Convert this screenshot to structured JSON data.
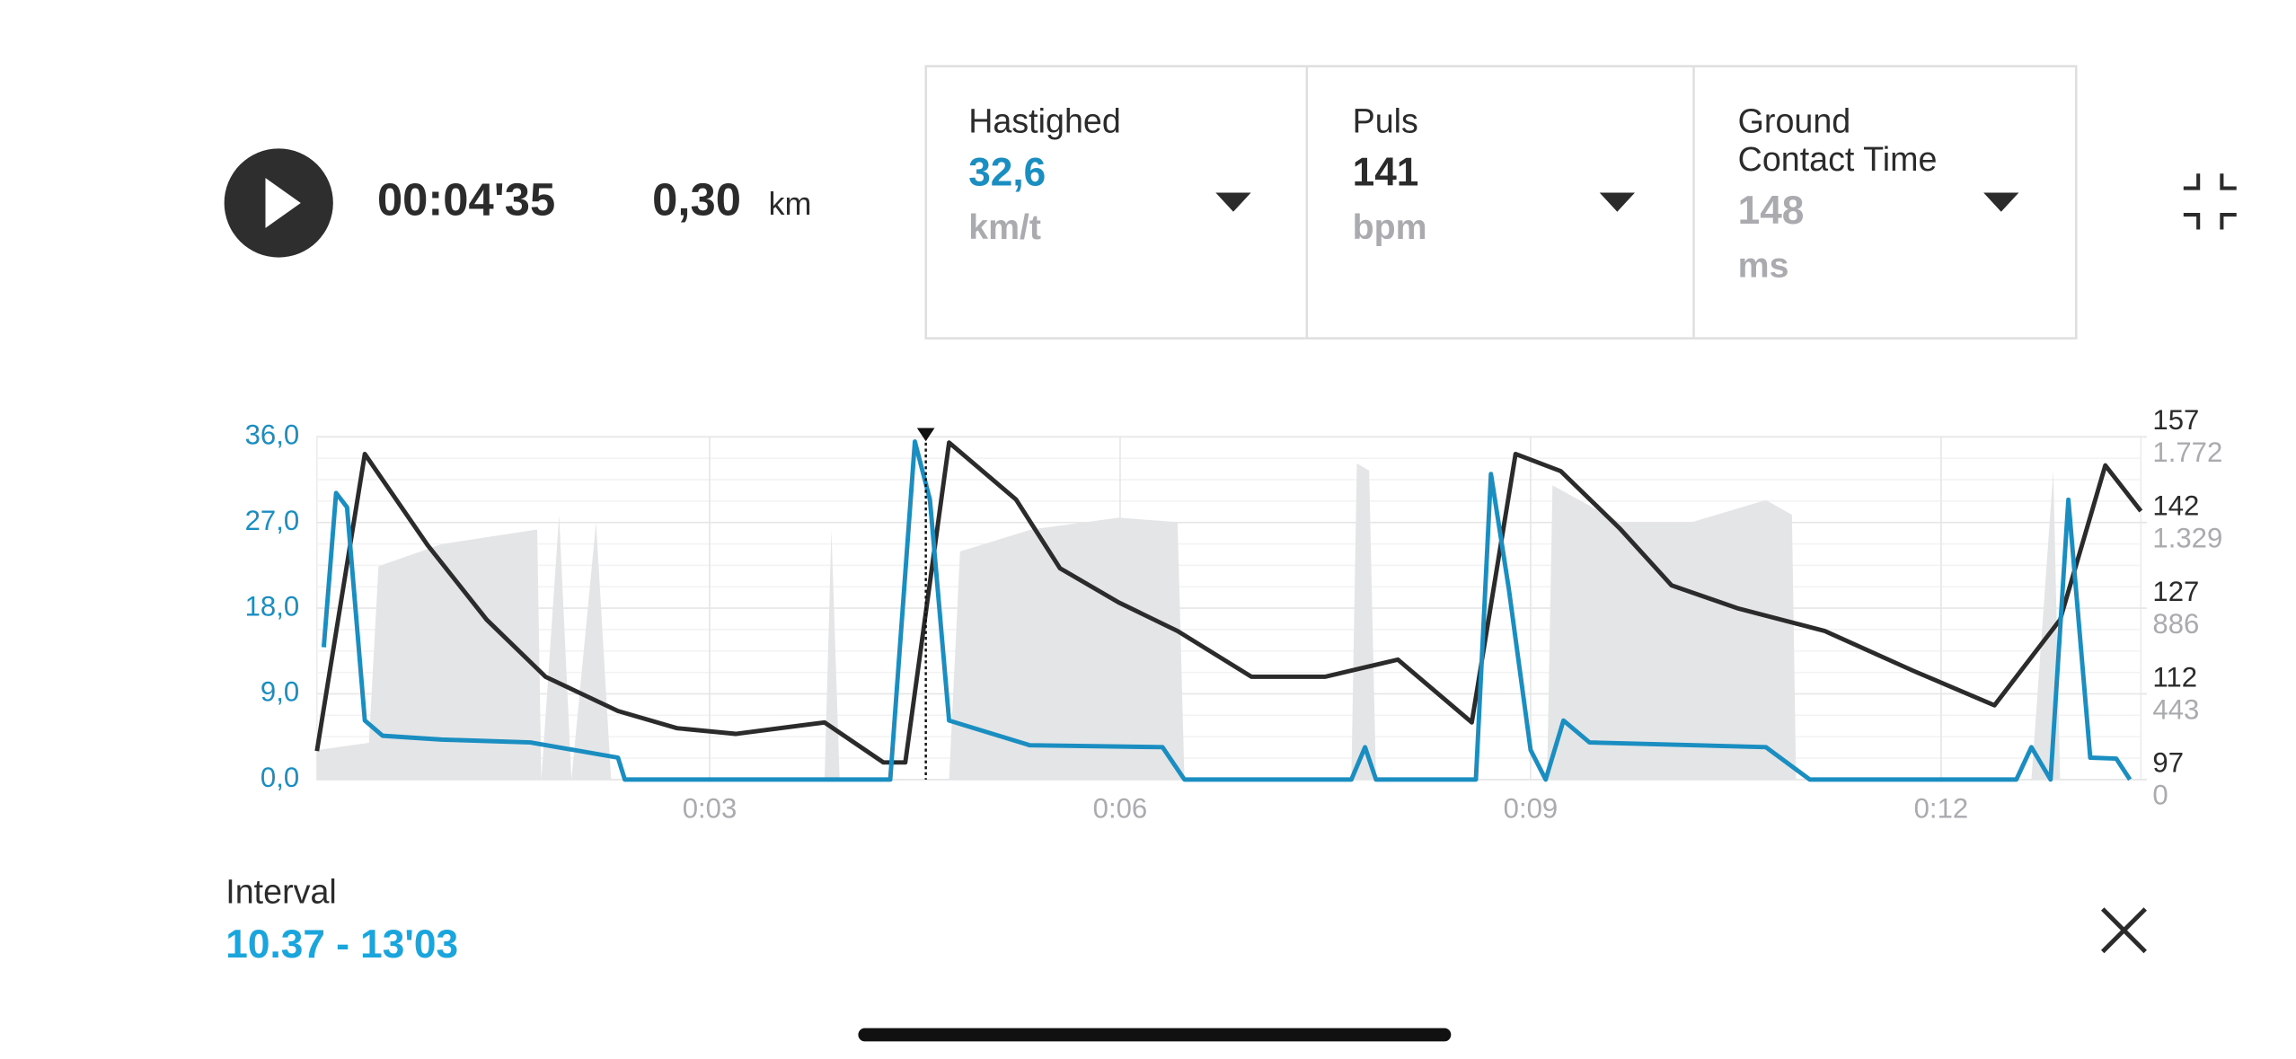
{
  "header": {
    "elapsed": "00:04'35",
    "distance": "0,30",
    "distance_unit": "km",
    "cards": [
      {
        "title": [
          "Hastighed"
        ],
        "value": "32,6",
        "unit": "km/t"
      },
      {
        "title": [
          "Puls"
        ],
        "value": "141",
        "unit": "bpm"
      },
      {
        "title": [
          "Ground",
          "Contact Time"
        ],
        "value": "148",
        "unit": "ms"
      }
    ]
  },
  "chart_data": {
    "type": "line",
    "grid": true,
    "cursor_x": 4.58,
    "xlim": [
      0.13,
      13.46
    ],
    "xticks": [
      {
        "value": 3,
        "label": "0:03"
      },
      {
        "value": 6,
        "label": "0:06"
      },
      {
        "value": 9,
        "label": "0:09"
      },
      {
        "value": 12,
        "label": "0:12"
      }
    ],
    "ylim": [
      0,
      36
    ],
    "yticks": [
      {
        "value": 0,
        "label": "0,0"
      },
      {
        "value": 9,
        "label": "9,0"
      },
      {
        "value": 18,
        "label": "18,0"
      },
      {
        "value": 27,
        "label": "27,0"
      },
      {
        "value": 36,
        "label": "36,0"
      }
    ],
    "y2lim": [
      97,
      157
    ],
    "y2ticks": [
      97,
      112,
      127,
      142,
      157
    ],
    "y3lim": [
      0,
      1772
    ],
    "y3ticks": [
      0,
      443,
      886,
      {
        "value": 1329,
        "label": "1.329"
      },
      {
        "value": 1772,
        "label": "1.772"
      }
    ],
    "series": [
      {
        "type": "area",
        "axis": "y3",
        "color": "#e4e5e7",
        "x": [
          0.13,
          0.51,
          0.58,
          1.04,
          1.74,
          1.77,
          1.9,
          1.99,
          2.17,
          2.28,
          3.84,
          3.89,
          3.95,
          4.75,
          4.83,
          5.35,
          5.99,
          6.42,
          6.47,
          7.69,
          7.73,
          7.82,
          7.87,
          9.12,
          9.16,
          9.65,
          10.18,
          10.72,
          10.91,
          10.94,
          12.66,
          12.82,
          12.87,
          13.46
        ],
        "values": [
          152,
          190,
          1103,
          1217,
          1293,
          0,
          1369,
          0,
          1331,
          0,
          0,
          1293,
          0,
          0,
          1179,
          1293,
          1354,
          1331,
          0,
          0,
          1635,
          1597,
          0,
          0,
          1521,
          1331,
          1331,
          1445,
          1369,
          0,
          0,
          1597,
          0,
          0
        ]
      },
      {
        "type": "line",
        "axis": "y2",
        "color": "#2b2b2b",
        "x": [
          0.13,
          0.48,
          0.94,
          1.37,
          1.8,
          2.33,
          2.76,
          3.19,
          3.84,
          4.27,
          4.43,
          4.75,
          5.24,
          5.56,
          5.99,
          6.42,
          6.96,
          7.5,
          8.03,
          8.57,
          8.89,
          9.22,
          9.65,
          10.03,
          10.51,
          11.15,
          11.8,
          12.39,
          12.87,
          13.2,
          13.46
        ],
        "values": [
          102,
          154,
          138,
          125,
          115,
          109,
          106,
          105,
          107,
          100,
          100,
          156,
          146,
          134,
          128,
          123,
          115,
          115,
          118,
          107,
          154,
          151,
          141,
          131,
          127,
          123,
          116,
          110,
          125,
          152,
          144
        ]
      },
      {
        "type": "line",
        "axis": "y",
        "color": "#1a8ec0",
        "x": [
          0.18,
          0.27,
          0.35,
          0.48,
          0.61,
          1.04,
          1.69,
          2.33,
          2.38,
          4.32,
          4.5,
          4.61,
          4.75,
          5.34,
          6.31,
          6.47,
          7.69,
          7.79,
          7.87,
          8.6,
          8.71,
          8.84,
          9.0,
          9.11,
          9.24,
          9.43,
          10.72,
          11.04,
          12.55,
          12.66,
          12.8,
          12.93,
          13.09,
          13.28,
          13.38
        ],
        "values": [
          13.9,
          30.1,
          28.6,
          6.2,
          4.6,
          4.2,
          3.9,
          2.3,
          0,
          0,
          35.5,
          29.4,
          6.2,
          3.6,
          3.4,
          0,
          0,
          3.4,
          0,
          0,
          32.1,
          20.1,
          3.1,
          0,
          6.2,
          3.9,
          3.4,
          0,
          0,
          3.4,
          0,
          29.4,
          2.3,
          2.2,
          0
        ]
      }
    ]
  },
  "footer": {
    "interval_label": "Interval",
    "interval_value": "10.37 - 13'03"
  }
}
